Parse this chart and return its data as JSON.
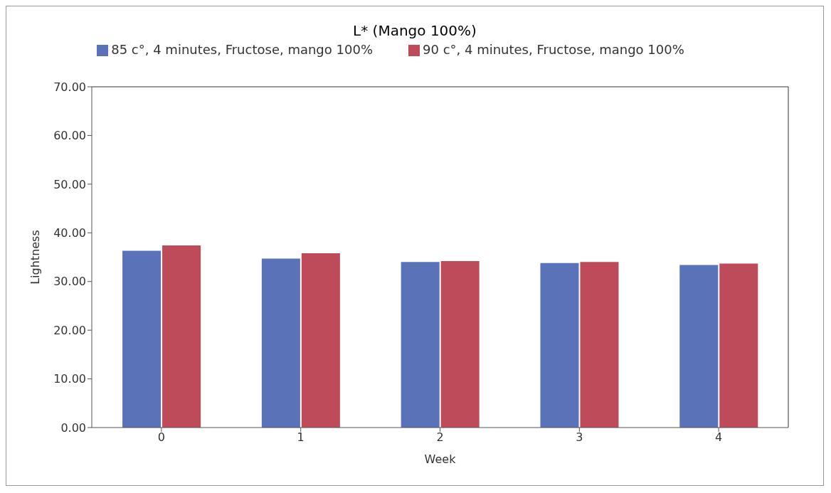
{
  "chart_data": {
    "type": "bar",
    "title": "L* (Mango 100%)",
    "xlabel": "Week",
    "ylabel": "Lightness",
    "categories": [
      "0",
      "1",
      "2",
      "3",
      "4"
    ],
    "series": [
      {
        "name": "85 c°, 4 minutes, Fructose, mango 100%",
        "color": "#5a72b8",
        "values": [
          36.3,
          34.7,
          34.0,
          33.8,
          33.4
        ]
      },
      {
        "name": "90 c°, 4 minutes, Fructose, mango 100%",
        "color": "#be4b5a",
        "values": [
          37.4,
          35.8,
          34.2,
          34.0,
          33.7
        ]
      }
    ],
    "ylim": [
      0,
      70
    ],
    "yticks": [
      {
        "value": 0,
        "label": "0.00"
      },
      {
        "value": 10,
        "label": "10.00"
      },
      {
        "value": 20,
        "label": "20.00"
      },
      {
        "value": 30,
        "label": "30.00"
      },
      {
        "value": 40,
        "label": "40.00"
      },
      {
        "value": 50,
        "label": "50.00"
      },
      {
        "value": 60,
        "label": "60.00"
      },
      {
        "value": 70,
        "label": "70.00"
      }
    ],
    "grid": false,
    "legend": "top"
  }
}
